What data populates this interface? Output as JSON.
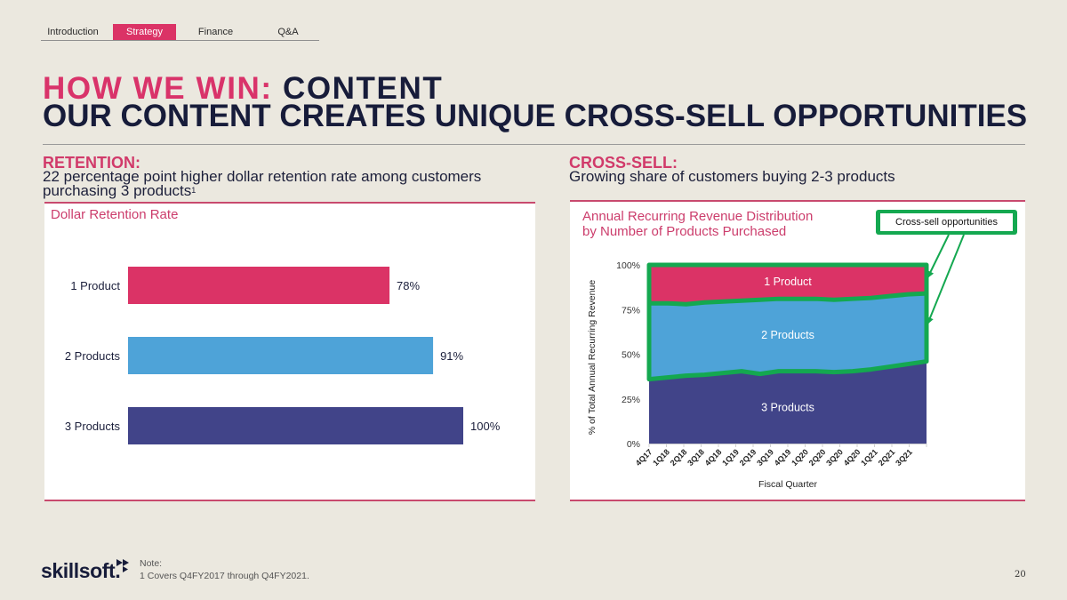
{
  "tabs": [
    {
      "label": "Introduction",
      "active": false
    },
    {
      "label": "Strategy",
      "active": true
    },
    {
      "label": "Finance",
      "active": false
    },
    {
      "label": "Q&A",
      "active": false
    }
  ],
  "title": {
    "accent": "HOW WE WIN:",
    "main": "CONTENT",
    "subtitle": "OUR CONTENT CREATES UNIQUE CROSS-SELL OPPORTUNITIES"
  },
  "retention": {
    "heading": "RETENTION:",
    "text": "22 percentage point higher dollar retention rate among customers purchasing 3 products",
    "footnote_ref": "1"
  },
  "cross_sell": {
    "heading": "CROSS-SELL:",
    "text": "Growing share of customers buying 2-3 products"
  },
  "callout": {
    "label": "Cross-sell opportunities"
  },
  "footer": {
    "logo_text": "skillsoft",
    "note_label": "Note:",
    "note_text": "1 Covers Q4FY2017 through Q4FY2021.",
    "page_number": "20"
  },
  "colors": {
    "background": "#ebe8df",
    "accent_pink": "#db3366",
    "navy": "#171c3a",
    "light_blue": "#4ea3d8",
    "dark_blue": "#414489",
    "highlight_green": "#14a850"
  },
  "chart_data": [
    {
      "type": "bar",
      "orientation": "horizontal",
      "title": "Dollar Retention Rate",
      "categories": [
        "1 Product",
        "2 Products",
        "3 Products"
      ],
      "values": [
        78,
        91,
        100
      ],
      "value_labels": [
        "78%",
        "91%",
        "100%"
      ],
      "colors": [
        "#db3366",
        "#4ea3d8",
        "#414489"
      ],
      "xlim": [
        0,
        100
      ],
      "grid": false,
      "legend": "none"
    },
    {
      "type": "area",
      "stacked": true,
      "title": "Annual Recurring Revenue Distribution by Number of Products Purchased",
      "title_lines": [
        "Annual Recurring Revenue Distribution",
        "by Number of Products Purchased"
      ],
      "xlabel": "Fiscal Quarter",
      "ylabel": "% of Total Annual Recurring Revenue",
      "x": [
        "4Q17",
        "1Q18",
        "2Q18",
        "3Q18",
        "4Q18",
        "1Q19",
        "2Q19",
        "3Q19",
        "4Q19",
        "1Q20",
        "2Q20",
        "3Q20",
        "4Q20",
        "1Q21",
        "2Q21",
        "3Q21"
      ],
      "ylim": [
        0,
        100
      ],
      "yticks": [
        0,
        25,
        50,
        75,
        100
      ],
      "ytick_labels": [
        "0%",
        "25%",
        "50%",
        "75%",
        "100%"
      ],
      "grid": false,
      "legend": "inline-labels",
      "series": [
        {
          "name": "3 Products",
          "color": "#414489",
          "values": [
            36,
            37,
            38,
            38.5,
            39.5,
            40.5,
            39,
            40.5,
            40.5,
            40.5,
            40,
            40.5,
            41.5,
            43,
            44.5,
            46
          ]
        },
        {
          "name": "2 Products",
          "color": "#4ea3d8",
          "values": [
            42.5,
            41.5,
            40,
            40.5,
            40,
            39.5,
            41.5,
            40.5,
            40.5,
            40.5,
            40.5,
            40.5,
            40,
            39.5,
            39,
            38
          ]
        },
        {
          "name": "1 Product",
          "color": "#db3366",
          "values": [
            21.5,
            21.5,
            22,
            21,
            20.5,
            20,
            19.5,
            19,
            19,
            19,
            19.5,
            19,
            18.5,
            17.5,
            16.5,
            16
          ]
        }
      ],
      "annotation": {
        "label": "Cross-sell opportunities",
        "targets": [
          "1 Product",
          "2 Products"
        ],
        "color": "#14a850"
      }
    }
  ]
}
